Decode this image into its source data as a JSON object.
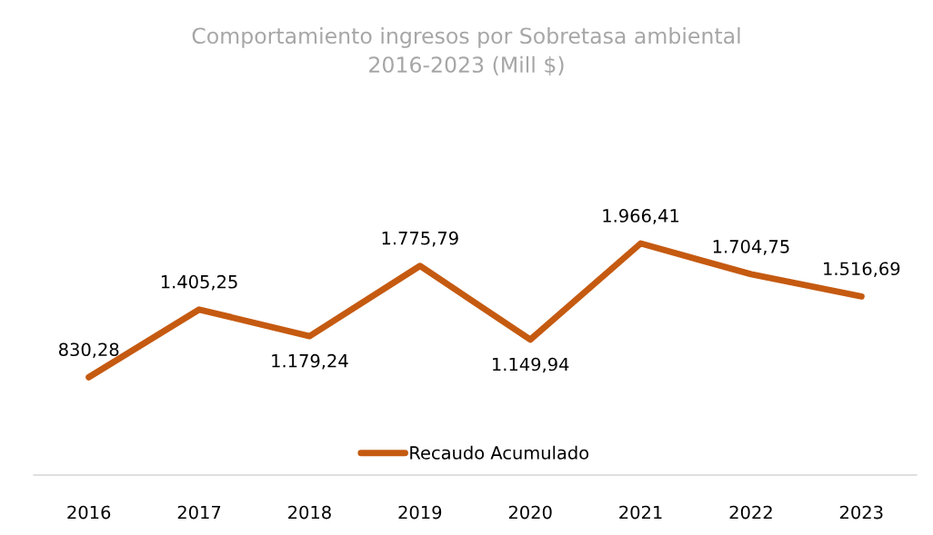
{
  "chart_data": {
    "type": "line",
    "title": "Comportamiento ingresos por Sobretasa ambiental\n2016-2023 (Mill $)",
    "categories": [
      "2016",
      "2017",
      "2018",
      "2019",
      "2020",
      "2021",
      "2022",
      "2023"
    ],
    "series": [
      {
        "name": "Recaudo Acumulado",
        "color": "#c55a11",
        "values": [
          830.28,
          1405.25,
          1179.24,
          1775.79,
          1149.94,
          1966.41,
          1704.75,
          1516.69
        ],
        "value_labels": [
          "830,28",
          "1.405,25",
          "1.179,24",
          "1.775,79",
          "1.149,94",
          "1.966,41",
          "1.704,75",
          "1.516,69"
        ]
      }
    ],
    "legend": "bottom",
    "grid": false,
    "marker": "none",
    "line_style": "solid",
    "tick_labels": "x"
  }
}
